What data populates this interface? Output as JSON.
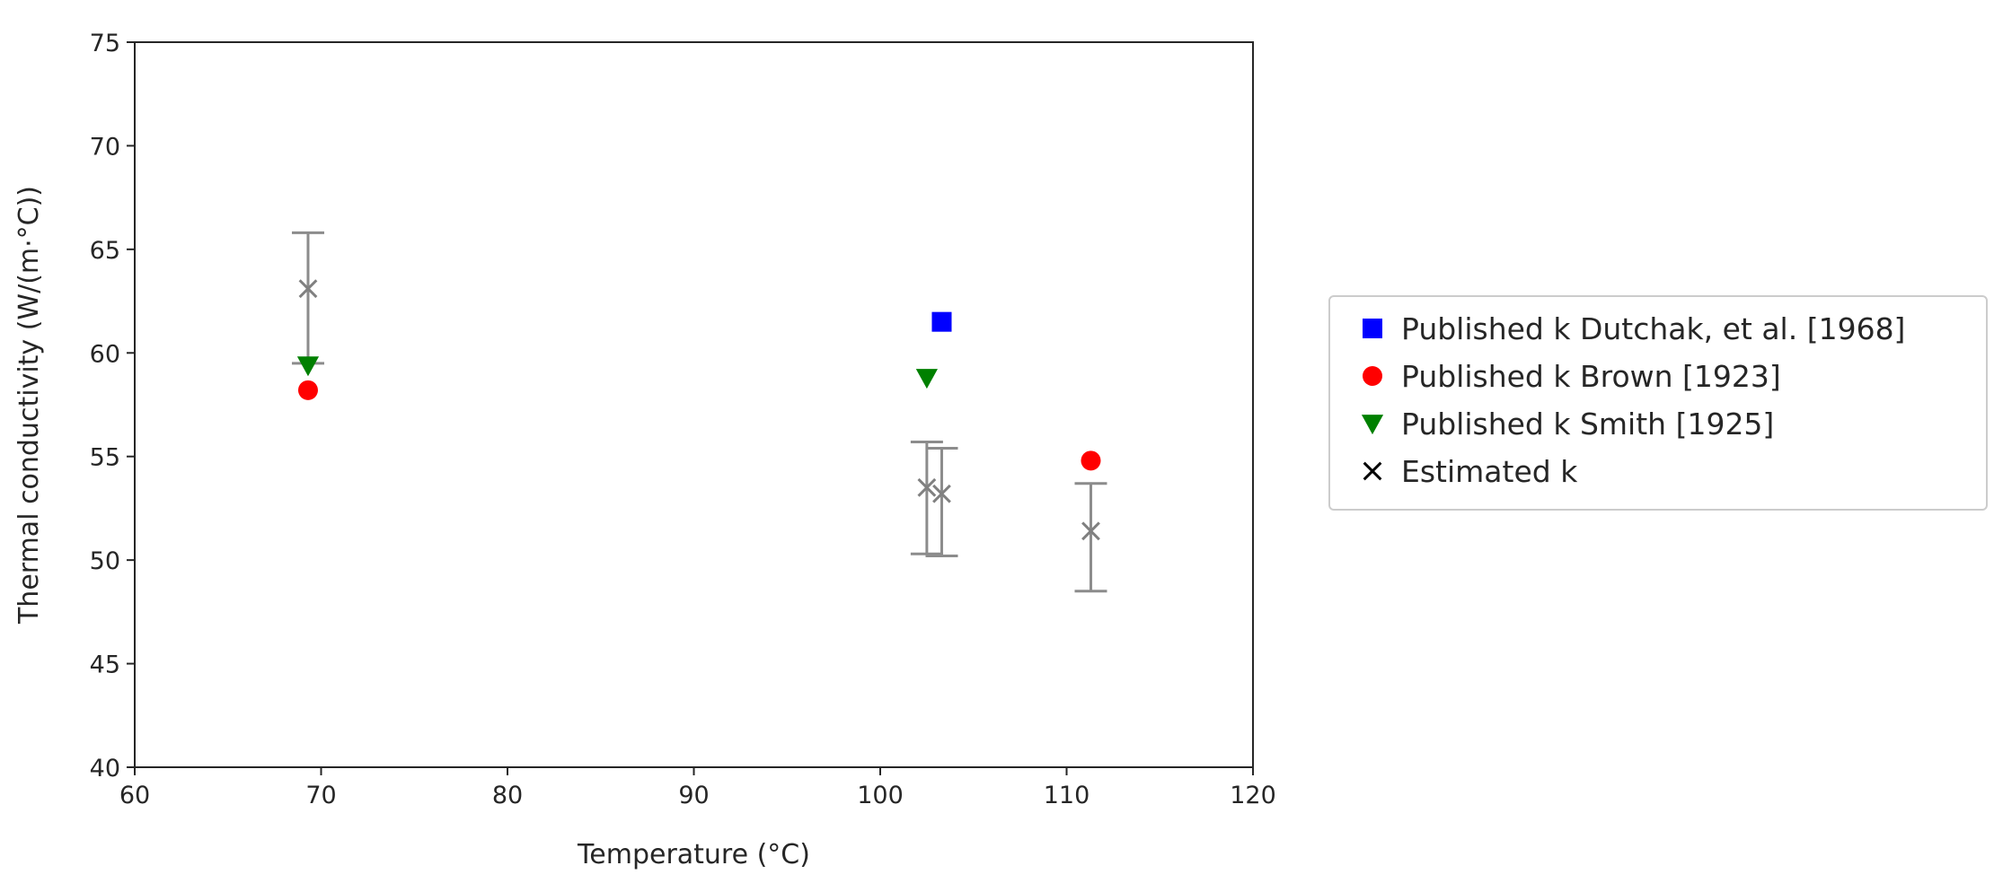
{
  "chart_data": {
    "type": "scatter",
    "title": "",
    "xlabel": "Temperature (°C)",
    "ylabel": "Thermal conductivity (W/(m·°C))",
    "xlim": [
      60,
      120
    ],
    "ylim": [
      40,
      75
    ],
    "xticks": [
      "60",
      "70",
      "80",
      "90",
      "100",
      "110",
      "120"
    ],
    "yticks": [
      "40",
      "45",
      "50",
      "55",
      "60",
      "65",
      "70",
      "75"
    ],
    "grid": false,
    "legend_position": "outside-right",
    "series": [
      {
        "name": "Published k Dutchak, et al. [1968]",
        "marker": "square",
        "color": "#0000ff",
        "points": [
          {
            "x": 103.3,
            "y": 61.5
          }
        ]
      },
      {
        "name": "Published k Brown [1923]",
        "marker": "circle",
        "color": "#ff0000",
        "points": [
          {
            "x": 69.3,
            "y": 58.2
          },
          {
            "x": 111.3,
            "y": 54.8
          }
        ]
      },
      {
        "name": "Published k Smith [1925]",
        "marker": "triangle-down",
        "color": "#008000",
        "points": [
          {
            "x": 69.3,
            "y": 59.4
          },
          {
            "x": 102.5,
            "y": 58.8
          }
        ]
      },
      {
        "name": "Estimated k",
        "marker": "x",
        "color": "#808080",
        "legend_color": "#000000",
        "points": [
          {
            "x": 69.3,
            "y": 63.1,
            "err_low": 59.5,
            "err_high": 65.8
          },
          {
            "x": 102.5,
            "y": 53.5,
            "err_low": 50.3,
            "err_high": 55.7
          },
          {
            "x": 103.3,
            "y": 53.2,
            "err_low": 50.2,
            "err_high": 55.4
          },
          {
            "x": 111.3,
            "y": 51.4,
            "err_low": 48.5,
            "err_high": 53.7
          }
        ]
      }
    ]
  }
}
